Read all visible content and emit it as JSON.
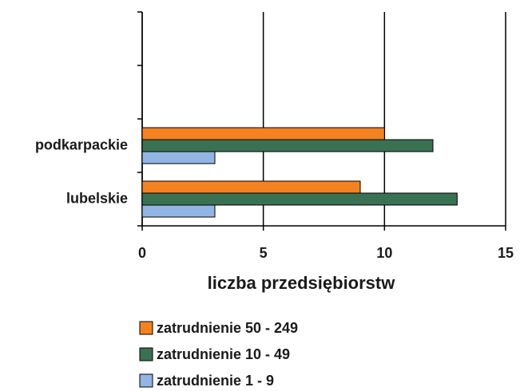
{
  "chart_data": {
    "type": "hbar",
    "xlabel": "liczba przedsiębiorstw",
    "categories": [
      "lubelskie",
      "podkarpackie",
      null,
      null
    ],
    "series": [
      {
        "name": "zatrudnienie 50 - 249",
        "color": "#f58220",
        "values": [
          9,
          10,
          null,
          null
        ]
      },
      {
        "name": "zatrudnienie 10 - 49",
        "color": "#3b7153",
        "values": [
          13,
          12,
          null,
          null
        ]
      },
      {
        "name": "zatrudnienie 1 - 9",
        "color": "#92b5e3",
        "values": [
          3,
          3,
          null,
          null
        ]
      }
    ],
    "xlim": [
      0,
      15
    ],
    "xticks": [
      0,
      5,
      10,
      15
    ],
    "grid": true,
    "legend": "bottom"
  }
}
